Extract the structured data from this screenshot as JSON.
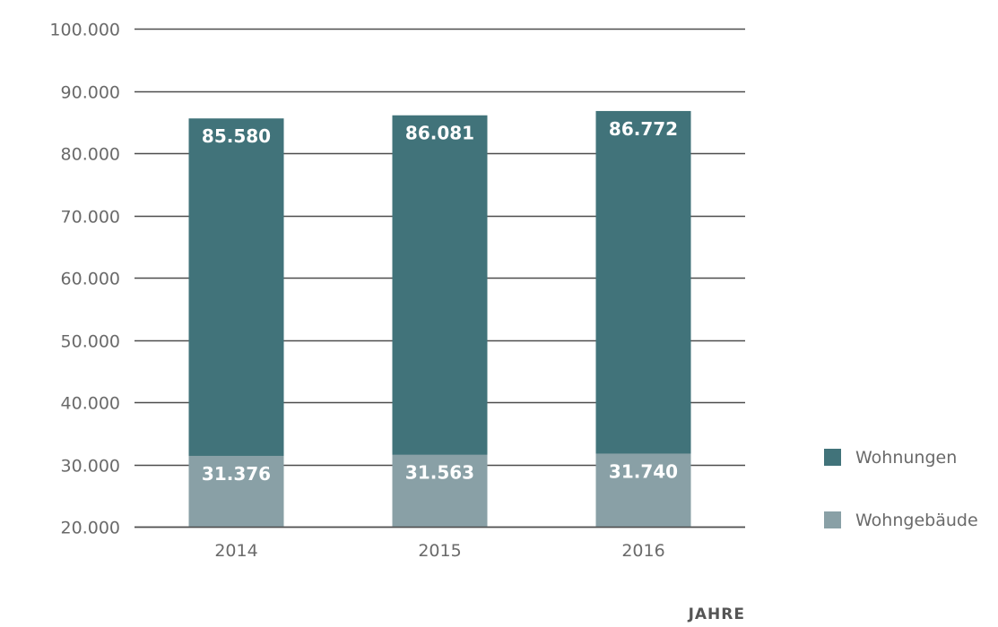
{
  "chart_data": {
    "type": "bar",
    "stacked": false,
    "overlapping": true,
    "categories": [
      "2014",
      "2015",
      "2016"
    ],
    "series": [
      {
        "name": "Wohnungen",
        "values": [
          85580,
          86081,
          86772
        ],
        "labels": [
          "85.580",
          "86.081",
          "86.772"
        ],
        "color": "#41737a"
      },
      {
        "name": "Wohngebäude",
        "values": [
          31376,
          31563,
          31740
        ],
        "labels": [
          "31.376",
          "31.563",
          "31.740"
        ],
        "color": "#89a0a6"
      }
    ],
    "ylim": [
      20000,
      100000
    ],
    "yticks": [
      20000,
      30000,
      40000,
      50000,
      60000,
      70000,
      80000,
      90000,
      100000
    ],
    "ytick_labels": [
      "20.000",
      "30.000",
      "40.000",
      "50.000",
      "60.000",
      "70.000",
      "80.000",
      "90.000",
      "100.000"
    ],
    "xlabel": "JAHRE",
    "ylabel": "",
    "title": "",
    "grid": true,
    "legend_position": "right",
    "colors": {
      "grid": "#4d4d4d",
      "tick_text": "#6a6a6a",
      "bar_text": "#ffffff"
    }
  }
}
